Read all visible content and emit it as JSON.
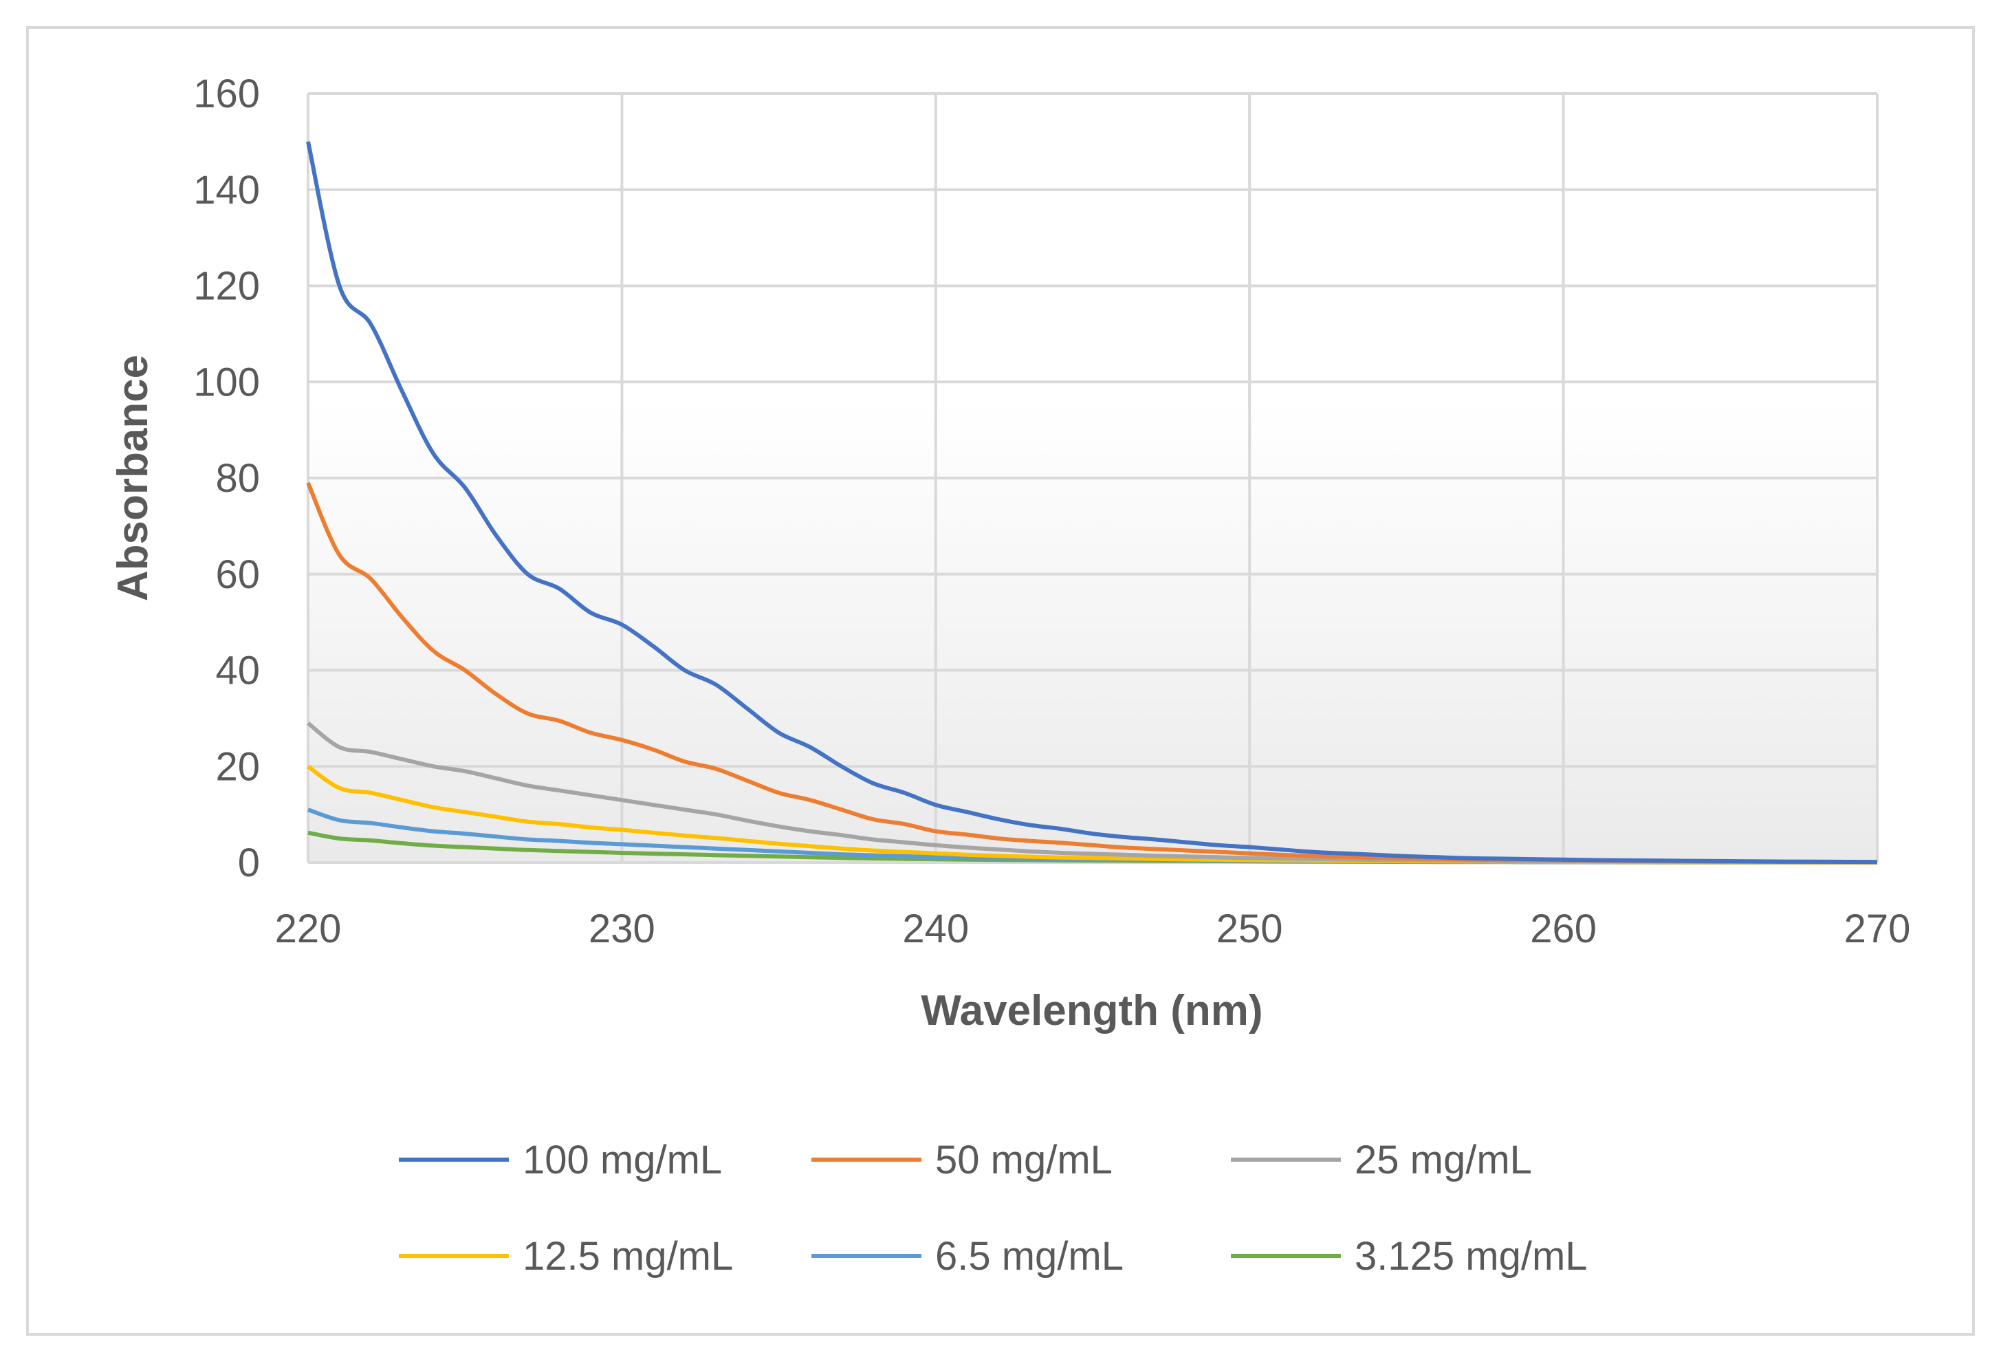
{
  "chart_data": {
    "type": "line",
    "title": "",
    "xlabel": "Wavelength (nm)",
    "ylabel": "Absorbance",
    "xlim": [
      220,
      270
    ],
    "ylim": [
      0,
      160
    ],
    "xticks": [
      220,
      230,
      240,
      250,
      260,
      270
    ],
    "yticks": [
      0,
      20,
      40,
      60,
      80,
      100,
      120,
      140,
      160
    ],
    "xtick_labels": [
      "220",
      "230",
      "240",
      "250",
      "260",
      "270"
    ],
    "ytick_labels": [
      "0",
      "20",
      "40",
      "60",
      "80",
      "100",
      "120",
      "140",
      "160"
    ],
    "grid": true,
    "legend_position": "bottom",
    "x": [
      220,
      221,
      222,
      223,
      224,
      225,
      226,
      227,
      228,
      229,
      230,
      231,
      232,
      233,
      234,
      235,
      236,
      237,
      238,
      239,
      240,
      241,
      242,
      243,
      244,
      245,
      246,
      247,
      248,
      249,
      250,
      251,
      252,
      253,
      254,
      255,
      256,
      257,
      258,
      259,
      260,
      261,
      262,
      263,
      264,
      265,
      266,
      267,
      268,
      269,
      270
    ],
    "series": [
      {
        "name": "100 mg/mL",
        "color": "#4472C4",
        "values": [
          150,
          120,
          112,
          98,
          85,
          78,
          68,
          60,
          57,
          52,
          49.5,
          45,
          40,
          37,
          32,
          27,
          24,
          20,
          16.5,
          14.5,
          12,
          10.5,
          9,
          7.8,
          7,
          6,
          5.3,
          4.8,
          4.2,
          3.6,
          3.2,
          2.7,
          2.2,
          1.9,
          1.6,
          1.3,
          1.1,
          0.9,
          0.8,
          0.7,
          0.6,
          0.5,
          0.45,
          0.4,
          0.35,
          0.3,
          0.25,
          0.2,
          0.18,
          0.15,
          0.1
        ]
      },
      {
        "name": "50 mg/mL",
        "color": "#ED7D31",
        "values": [
          79,
          64,
          59,
          51,
          44,
          40,
          35,
          31,
          29.5,
          27,
          25.5,
          23.5,
          21,
          19.5,
          17,
          14.5,
          13,
          11,
          9,
          8,
          6.5,
          5.8,
          5,
          4.5,
          4.1,
          3.6,
          3.1,
          2.8,
          2.5,
          2.2,
          1.9,
          1.6,
          1.35,
          1.15,
          1,
          0.85,
          0.75,
          0.65,
          0.55,
          0.5,
          0.45,
          0.4,
          0.35,
          0.3,
          0.25,
          0.2,
          0.18,
          0.15,
          0.12,
          0.1,
          0.08
        ]
      },
      {
        "name": "25 mg/mL",
        "color": "#A5A5A5",
        "values": [
          29,
          24,
          23,
          21.5,
          20,
          19,
          17.5,
          16,
          15,
          14,
          13,
          12,
          11,
          10,
          8.7,
          7.5,
          6.5,
          5.7,
          4.8,
          4.2,
          3.6,
          3.1,
          2.7,
          2.3,
          2,
          1.8,
          1.6,
          1.4,
          1.25,
          1.1,
          0.95,
          0.85,
          0.75,
          0.65,
          0.55,
          0.5,
          0.45,
          0.4,
          0.35,
          0.3,
          0.28,
          0.25,
          0.22,
          0.2,
          0.18,
          0.15,
          0.13,
          0.12,
          0.1,
          0.08,
          0.07
        ]
      },
      {
        "name": "12.5 mg/mL",
        "color": "#FFC000",
        "values": [
          20,
          15.5,
          14.5,
          13,
          11.5,
          10.5,
          9.5,
          8.5,
          8,
          7.3,
          6.8,
          6.2,
          5.6,
          5.1,
          4.5,
          3.9,
          3.4,
          2.9,
          2.5,
          2.2,
          1.9,
          1.6,
          1.4,
          1.2,
          1.05,
          0.95,
          0.85,
          0.75,
          0.65,
          0.58,
          0.5,
          0.45,
          0.4,
          0.35,
          0.3,
          0.27,
          0.25,
          0.22,
          0.2,
          0.18,
          0.16,
          0.14,
          0.12,
          0.1,
          0.09,
          0.08,
          0.07,
          0.06,
          0.05,
          0.05,
          0.04
        ]
      },
      {
        "name": "6.5 mg/mL",
        "color": "#5B9BD5",
        "values": [
          11,
          8.8,
          8.2,
          7.3,
          6.5,
          6,
          5.4,
          4.8,
          4.5,
          4.1,
          3.8,
          3.5,
          3.2,
          2.9,
          2.6,
          2.3,
          2,
          1.7,
          1.5,
          1.3,
          1.15,
          1,
          0.9,
          0.8,
          0.7,
          0.62,
          0.55,
          0.5,
          0.45,
          0.4,
          0.35,
          0.31,
          0.28,
          0.25,
          0.22,
          0.2,
          0.18,
          0.16,
          0.14,
          0.12,
          0.11,
          0.1,
          0.09,
          0.08,
          0.07,
          0.06,
          0.05,
          0.05,
          0.04,
          0.04,
          0.03
        ]
      },
      {
        "name": "3.125 mg/mL",
        "color": "#70AD47",
        "values": [
          6.2,
          5,
          4.6,
          4,
          3.5,
          3.2,
          2.9,
          2.6,
          2.4,
          2.2,
          2,
          1.85,
          1.7,
          1.55,
          1.4,
          1.25,
          1.1,
          0.95,
          0.85,
          0.75,
          0.68,
          0.6,
          0.55,
          0.5,
          0.45,
          0.4,
          0.37,
          0.34,
          0.31,
          0.28,
          0.25,
          0.22,
          0.2,
          0.18,
          0.16,
          0.14,
          0.12,
          0.11,
          0.1,
          0.09,
          0.08,
          0.07,
          0.06,
          0.05,
          0.05,
          0.04,
          0.04,
          0.03,
          0.03,
          0.02,
          0.02
        ]
      }
    ]
  }
}
